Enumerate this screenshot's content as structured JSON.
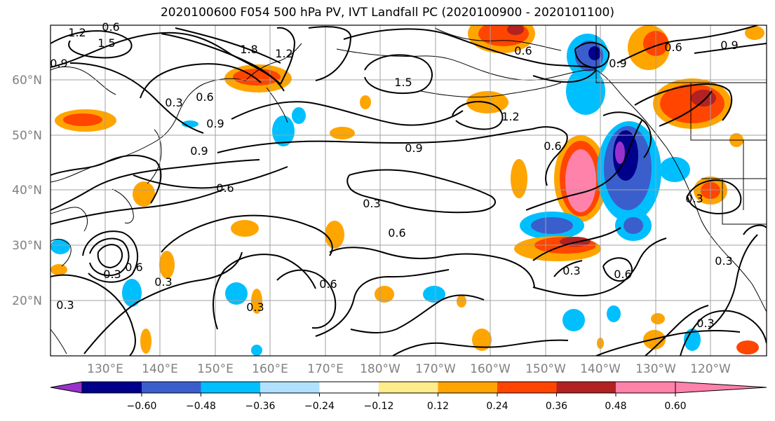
{
  "title": "2020100600 F054 500 hPa PV, IVT Landfall PC (2020100900 - 2020101100)",
  "lat_labels": [
    "60°N",
    "50°N",
    "40°N",
    "30°N",
    "20°N"
  ],
  "lon_labels": [
    "130°E",
    "140°E",
    "150°E",
    "160°E",
    "170°E",
    "180°W",
    "170°W",
    "160°W",
    "150°W",
    "140°W",
    "130°W",
    "120°W"
  ],
  "contour_labels": [
    "1.2",
    "0.6",
    "0.9",
    "1.8",
    "1.5",
    "0.3",
    "0.6",
    "0.9",
    "1.5",
    "1.2",
    "0.6",
    "0.9",
    "1.2",
    "0.9",
    "0.6",
    "0.9",
    "0.3",
    "0.6",
    "0.3",
    "0.6",
    "0.3",
    "0.6",
    "0.3",
    "0.6",
    "0.3",
    "0.3",
    "0.6",
    "0.6",
    "0.9",
    "0.3",
    "0.3",
    "0.3"
  ],
  "colorbar": {
    "tick_labels": [
      "−0.60",
      "−0.48",
      "−0.36",
      "−0.24",
      "−0.12",
      "0.12",
      "0.24",
      "0.36",
      "0.48",
      "0.60"
    ],
    "colors": [
      "#9932cc",
      "#00008b",
      "#3a5fcd",
      "#00bfff",
      "#b0e2ff",
      "#ffffff",
      "#ffec8b",
      "#ffa500",
      "#ff4500",
      "#b22222",
      "#ff82ab"
    ]
  },
  "colors": {
    "grid": "#a0a0a0",
    "contour": "#000000",
    "axis_label": "#808080"
  }
}
